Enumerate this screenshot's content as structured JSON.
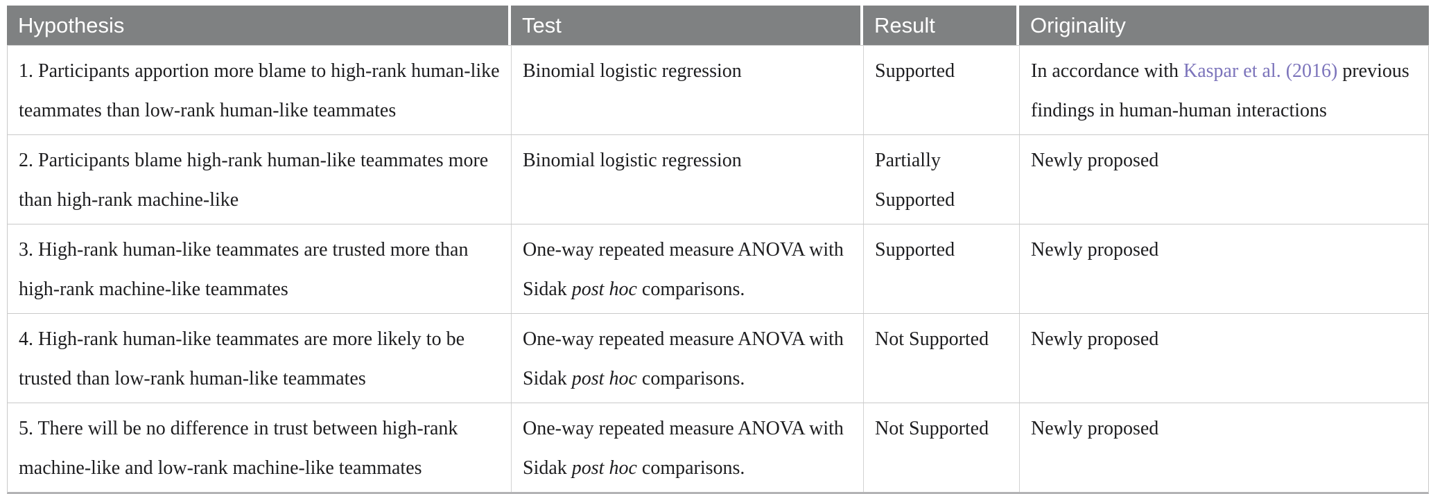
{
  "table": {
    "colors": {
      "header_bg": "#7f8182",
      "link": "#7c74bb",
      "grid_line": "#c9c9c9",
      "outer_bottom_border": "#b3b3b5",
      "header_text": "#ffffff",
      "body_text": "#1d1d1f"
    },
    "columns": [
      {
        "label": "Hypothesis"
      },
      {
        "label": "Test"
      },
      {
        "label": "Result"
      },
      {
        "label": "Originality"
      }
    ],
    "rows": [
      {
        "cells": [
          [
            {
              "t": "1. Participants apportion more blame to high-rank human-like teammates than low-rank human-like teammates"
            }
          ],
          [
            {
              "t": "Binomial logistic regression"
            }
          ],
          [
            {
              "t": "Supported"
            }
          ],
          [
            {
              "t": "In accordance with "
            },
            {
              "t": "Kaspar et al. (2016)",
              "s": "link"
            },
            {
              "t": " previous findings in human-human interactions"
            }
          ]
        ]
      },
      {
        "cells": [
          [
            {
              "t": "2. Participants blame high-rank human-like teammates more than high-rank machine-like"
            }
          ],
          [
            {
              "t": "Binomial logistic regression"
            }
          ],
          [
            {
              "t": "Partially Supported"
            }
          ],
          [
            {
              "t": "Newly proposed"
            }
          ]
        ]
      },
      {
        "cells": [
          [
            {
              "t": "3. High-rank human-like teammates are trusted more than high-rank machine-like teammates"
            }
          ],
          [
            {
              "t": "One-way repeated measure ANOVA with Sidak "
            },
            {
              "t": "post hoc",
              "s": "italic"
            },
            {
              "t": " comparisons."
            }
          ],
          [
            {
              "t": "Supported"
            }
          ],
          [
            {
              "t": "Newly proposed"
            }
          ]
        ]
      },
      {
        "cells": [
          [
            {
              "t": "4. High-rank human-like teammates are more likely to be trusted than low-rank human-like teammates"
            }
          ],
          [
            {
              "t": "One-way repeated measure ANOVA with Sidak "
            },
            {
              "t": "post hoc",
              "s": "italic"
            },
            {
              "t": " comparisons."
            }
          ],
          [
            {
              "t": "Not Supported"
            }
          ],
          [
            {
              "t": "Newly proposed"
            }
          ]
        ]
      },
      {
        "cells": [
          [
            {
              "t": "5. There will be no difference in trust between high-rank machine-like and low-rank machine-like teammates"
            }
          ],
          [
            {
              "t": "One-way repeated measure ANOVA with Sidak "
            },
            {
              "t": "post hoc",
              "s": "italic"
            },
            {
              "t": " comparisons."
            }
          ],
          [
            {
              "t": "Not Supported"
            }
          ],
          [
            {
              "t": "Newly proposed"
            }
          ]
        ]
      }
    ]
  }
}
